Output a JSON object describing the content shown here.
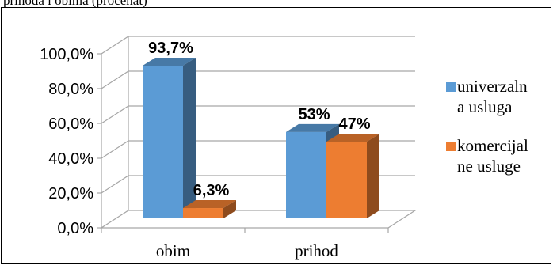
{
  "chart_data": {
    "type": "bar",
    "title": "",
    "xlabel": "",
    "ylabel": "",
    "categories": [
      "obim",
      "prihod"
    ],
    "series": [
      {
        "name": "univerzalna usluga",
        "values": [
          93.7,
          53
        ],
        "color": "#5b9bd5",
        "labels": [
          "93,7%",
          "53%"
        ]
      },
      {
        "name": "komercijalne usluge",
        "values": [
          6.3,
          47
        ],
        "color": "#ed7d31",
        "labels": [
          "6,3%",
          "47%"
        ]
      }
    ],
    "ylim": [
      0,
      100
    ],
    "yticks": [
      0,
      20,
      40,
      60,
      80,
      100
    ],
    "ytick_labels": [
      "0,0%",
      "20,0%",
      "40,0%",
      "60,0%",
      "80,0%",
      "100,0%"
    ],
    "grid": true,
    "three_d": true,
    "legend_position": "right",
    "legend_lines": [
      [
        "univerzaln",
        "a usluga"
      ],
      [
        "komercijal",
        "ne usluge"
      ]
    ]
  },
  "top_caption": "prihoda i obima (procenat)"
}
